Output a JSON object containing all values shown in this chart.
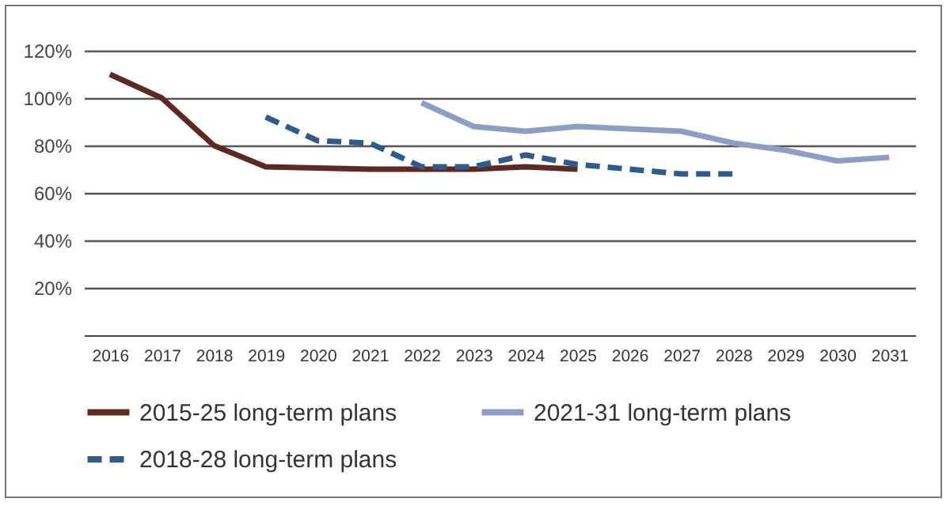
{
  "chart_data": {
    "type": "line",
    "categories": [
      "2016",
      "2017",
      "2018",
      "2019",
      "2020",
      "2021",
      "2022",
      "2023",
      "2024",
      "2025",
      "2026",
      "2027",
      "2028",
      "2029",
      "2030",
      "2031"
    ],
    "series": [
      {
        "name": "2015-25 long-term plans",
        "color": "#5c2a23",
        "line_style": "solid",
        "values": [
          110,
          100,
          80,
          71,
          70.5,
          70,
          70,
          70,
          71,
          70,
          null,
          null,
          null,
          null,
          null,
          null
        ]
      },
      {
        "name": "2021-31 long-term plans",
        "color": "#8e9dc6",
        "line_style": "solid",
        "values": [
          null,
          null,
          null,
          null,
          null,
          null,
          98,
          88,
          86,
          88,
          87,
          86,
          81,
          78,
          73.5,
          75
        ]
      },
      {
        "name": "2018-28 long-term plans",
        "color": "#2e5a8c",
        "line_style": "dashed",
        "values": [
          null,
          null,
          null,
          92,
          82,
          81,
          71,
          71,
          76,
          72,
          70,
          68,
          68,
          null,
          null,
          null
        ]
      }
    ],
    "ylim": [
      0,
      120
    ],
    "yticks": [
      {
        "value": 20,
        "label": "20%"
      },
      {
        "value": 40,
        "label": "40%"
      },
      {
        "value": 60,
        "label": "60%"
      },
      {
        "value": 80,
        "label": "80%"
      },
      {
        "value": 100,
        "label": "100%"
      },
      {
        "value": 120,
        "label": "120%"
      }
    ],
    "grid": "y",
    "legend": "bottom",
    "marker": "none"
  }
}
